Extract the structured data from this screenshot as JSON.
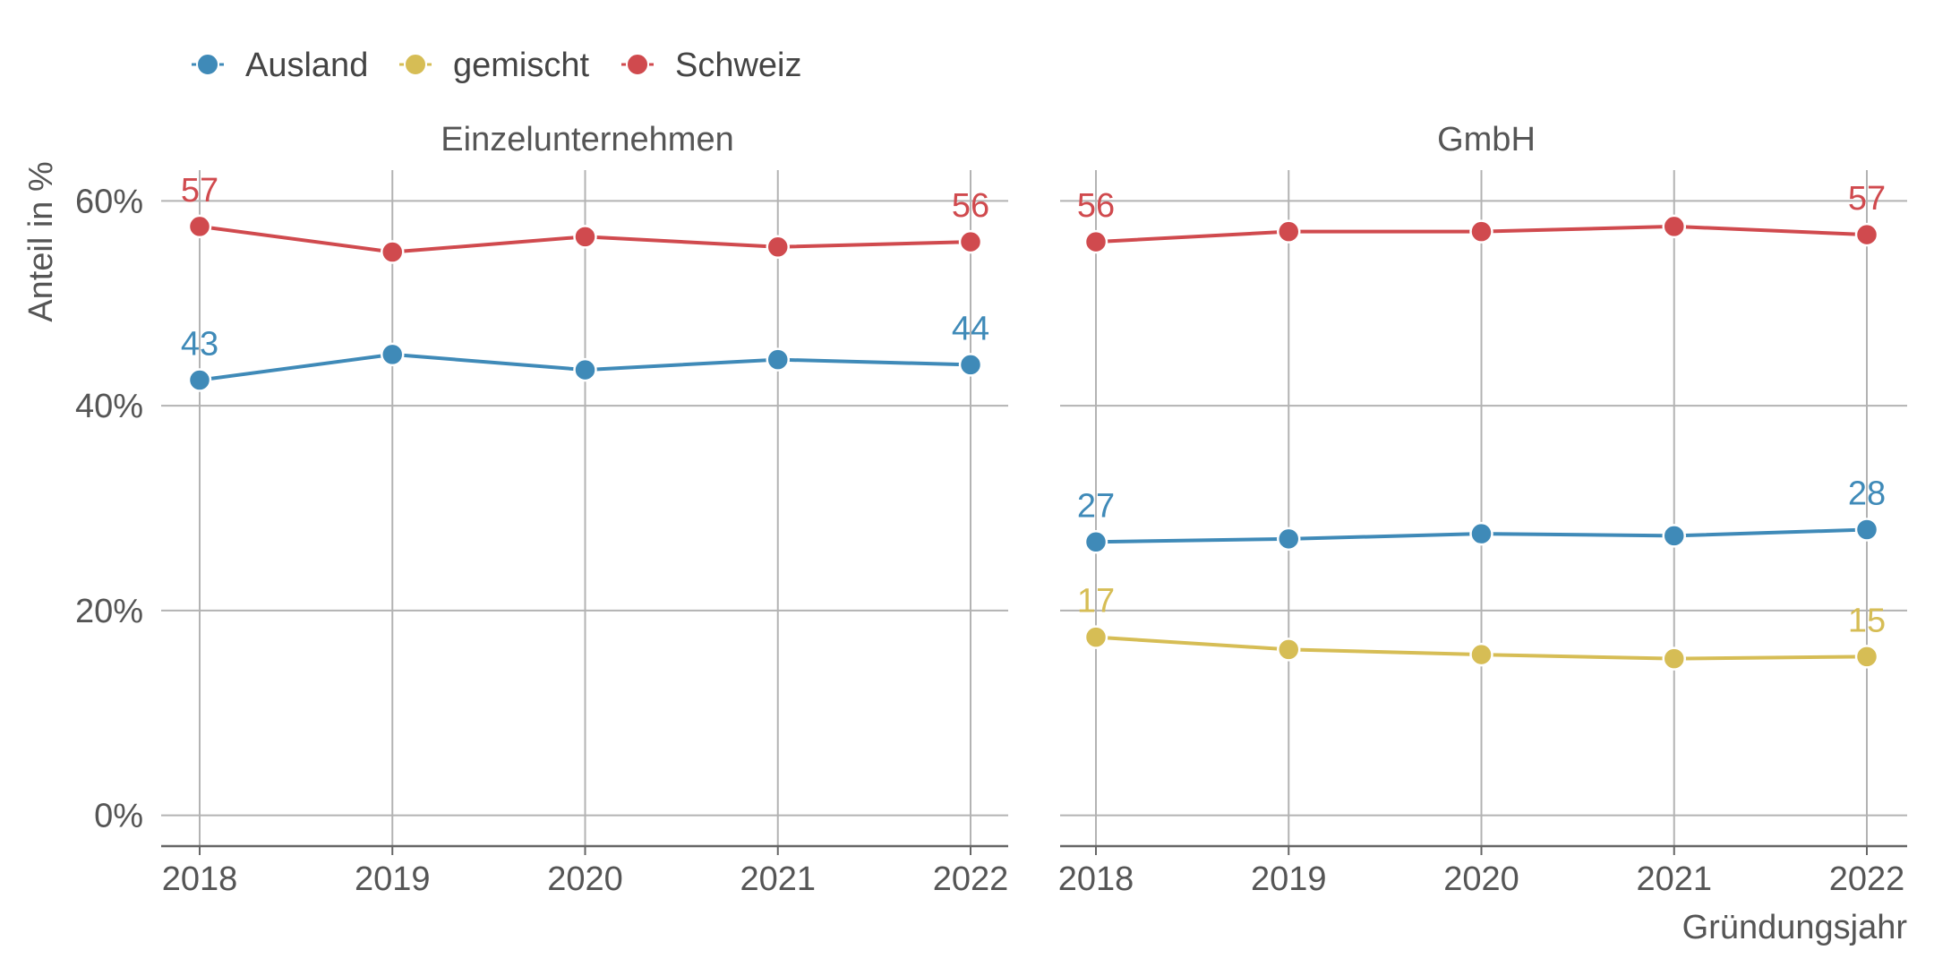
{
  "chart_data": {
    "type": "line",
    "xlabel": "Gründungsjahr",
    "ylabel": "Anteil in %",
    "ylim": [
      -3,
      63
    ],
    "yticks": [
      0,
      20,
      40,
      60
    ],
    "ytick_labels": [
      "0%",
      "20%",
      "40%",
      "60%"
    ],
    "x": [
      2018,
      2019,
      2020,
      2021,
      2022
    ],
    "xtick_labels": [
      "2018",
      "2019",
      "2020",
      "2021",
      "2022"
    ],
    "grid": true,
    "legend_position": "top-left",
    "legend": [
      {
        "name": "Ausland",
        "color": "#3f8ab8"
      },
      {
        "name": "gemischt",
        "color": "#d6bd55"
      },
      {
        "name": "Schweiz",
        "color": "#d04a4e"
      }
    ],
    "panels": [
      {
        "title": "Einzelunternehmen",
        "series": [
          {
            "name": "Schweiz",
            "color": "#d04a4e",
            "values": [
              57.5,
              55.0,
              56.5,
              55.5,
              56.0
            ],
            "end_labels": [
              "57",
              "56"
            ]
          },
          {
            "name": "Ausland",
            "color": "#3f8ab8",
            "values": [
              42.5,
              45.0,
              43.5,
              44.5,
              44.0
            ],
            "end_labels": [
              "43",
              "44"
            ]
          }
        ]
      },
      {
        "title": "GmbH",
        "series": [
          {
            "name": "Schweiz",
            "color": "#d04a4e",
            "values": [
              56.0,
              57.0,
              57.0,
              57.5,
              56.7
            ],
            "end_labels": [
              "56",
              "57"
            ]
          },
          {
            "name": "Ausland",
            "color": "#3f8ab8",
            "values": [
              26.7,
              27.0,
              27.5,
              27.3,
              27.9
            ],
            "end_labels": [
              "27",
              "28"
            ]
          },
          {
            "name": "gemischt",
            "color": "#d6bd55",
            "values": [
              17.4,
              16.2,
              15.7,
              15.3,
              15.5
            ],
            "end_labels": [
              "17",
              "15"
            ]
          }
        ]
      }
    ]
  }
}
